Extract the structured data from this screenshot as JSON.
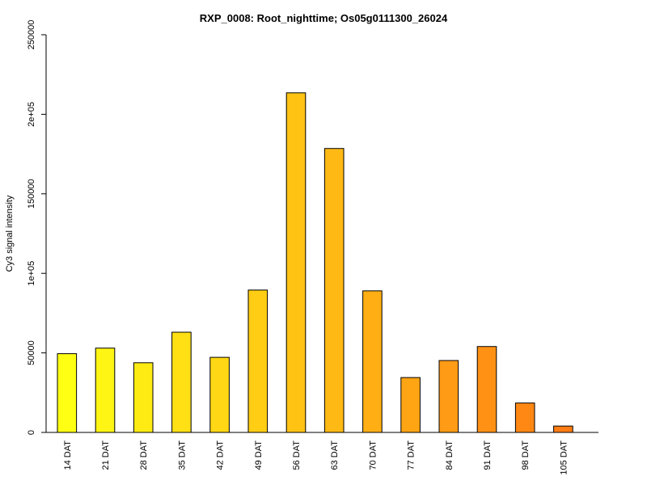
{
  "chart_data": {
    "type": "bar",
    "title": "RXP_0008: Root_nighttime; Os05g0111300_26024",
    "xlabel": "",
    "ylabel": "Cy3  signal intensity",
    "ylim": [
      0,
      250000
    ],
    "yticks": [
      {
        "value": 0,
        "label": "0"
      },
      {
        "value": 50000,
        "label": "50000"
      },
      {
        "value": 100000,
        "label": "1e+05"
      },
      {
        "value": 150000,
        "label": "150000"
      },
      {
        "value": 200000,
        "label": "2e+05"
      },
      {
        "value": 250000,
        "label": "250000"
      }
    ],
    "categories": [
      "14 DAT",
      "21 DAT",
      "28 DAT",
      "35 DAT",
      "42 DAT",
      "49 DAT",
      "56 DAT",
      "63 DAT",
      "70 DAT",
      "77 DAT",
      "84 DAT",
      "91 DAT",
      "98 DAT",
      "105 DAT"
    ],
    "values": [
      49500,
      53000,
      43800,
      63000,
      47200,
      89500,
      213500,
      178500,
      89000,
      34500,
      45200,
      54000,
      18500,
      4000
    ],
    "colors": [
      "#FFFF14",
      "#FFF514",
      "#FFEB14",
      "#FFE014",
      "#FFD714",
      "#FFCD14",
      "#FFC314",
      "#FFB914",
      "#FFAF14",
      "#FFA514",
      "#FF9B14",
      "#FF9114",
      "#FF8714",
      "#FF7D14"
    ],
    "grid": false,
    "legend": "none"
  }
}
